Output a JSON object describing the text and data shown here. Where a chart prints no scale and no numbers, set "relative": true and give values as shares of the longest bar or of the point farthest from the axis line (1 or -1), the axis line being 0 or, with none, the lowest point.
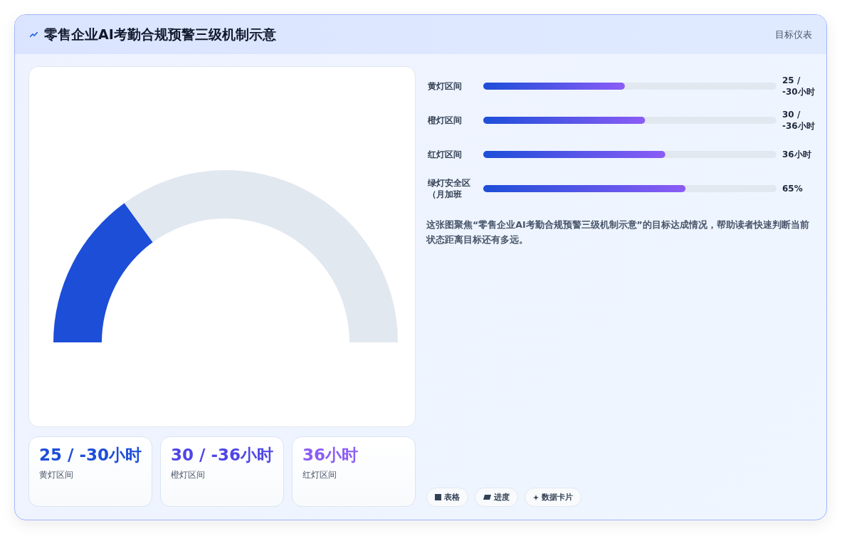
{
  "chart_data": [
    {
      "type": "donut",
      "title": "零售企业AI考勤合规预警三级机制示意",
      "annotations": [
        "目标仪表"
      ],
      "categories": [
        null,
        null
      ],
      "values": [
        30,
        70
      ],
      "colors": [
        "#1d4ed8",
        "#e2e8f0"
      ]
    },
    {
      "type": "bar",
      "orientation": "horizontal",
      "relative": true,
      "categories": [
        "黄灯区间",
        "橙灯区间",
        "红灯区间",
        "绿灯安全区（月加班"
      ],
      "values": [
        0.7,
        0.8,
        0.9,
        1
      ],
      "color": "#1d4ed8",
      "annotations": [
        "25 / -30小时",
        "30 / -36小时",
        "36小时",
        "65%",
        "这张图聚焦“零售企业AI考勤合规预警三级机制示意”的目标达成情况，帮助读者快速判断当前状态距离目标还有多远。",
        "表格",
        "进度",
        "数据卡片"
      ]
    },
    {
      "type": "other",
      "annotations": [
        "25 / -30小时",
        "黄灯区间",
        "30 / -36小时",
        "橙灯区间",
        "36小时",
        "红灯区间"
      ]
    }
  ]
}
